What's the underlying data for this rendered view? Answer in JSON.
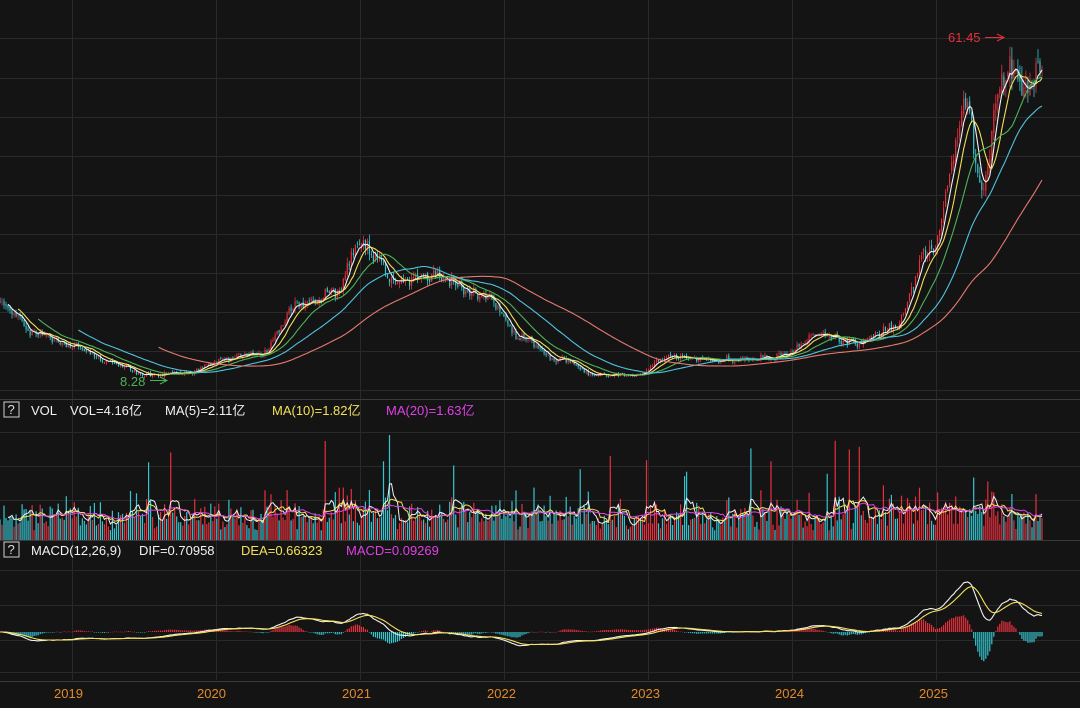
{
  "colors": {
    "background": "#141414",
    "grid": "#2a2a2a",
    "up": "#e5303d",
    "down": "#35c5cf",
    "ma_white": "#f2f2f2",
    "ma_yellow": "#f3e15a",
    "ma_green": "#4db35a",
    "ma_cyan": "#4fc3df",
    "ma_salmon": "#e8796f",
    "magenta": "#e040e8",
    "year_axis": "#e08a2a",
    "price_high_label": "#e5303d",
    "price_low_label": "#4db35a"
  },
  "price_panel": {
    "high_label": "61.45",
    "low_label": "8.28"
  },
  "vol_panel": {
    "help_icon": "?",
    "name": "VOL",
    "vol": "VOL=4.16亿",
    "ma5": "MA(5)=2.11亿",
    "ma10": "MA(10)=1.82亿",
    "ma20": "MA(20)=1.63亿"
  },
  "macd_panel": {
    "help_icon": "?",
    "name": "MACD(12,26,9)",
    "dif": "DIF=0.70958",
    "dea": "DEA=0.66323",
    "macd": "MACD=0.09269"
  },
  "x_axis": {
    "years": [
      "2019",
      "2020",
      "2021",
      "2022",
      "2023",
      "2024",
      "2025"
    ]
  },
  "chart_data": [
    {
      "type": "line",
      "name": "price",
      "x": [
        "2018-10",
        "2019-01",
        "2019-04",
        "2019-07",
        "2019-10",
        "2020-01",
        "2020-04",
        "2020-07",
        "2020-10",
        "2021-01",
        "2021-03",
        "2021-06",
        "2021-09",
        "2022-01",
        "2022-04",
        "2022-07",
        "2022-10",
        "2023-01",
        "2023-04",
        "2023-07",
        "2023-10",
        "2024-01",
        "2024-04",
        "2024-07",
        "2024-10",
        "2025-01",
        "2025-04",
        "2025-05",
        "2025-07",
        "2025-09",
        "2025-10"
      ],
      "series": [
        {
          "values": [
            20.5,
            15.5,
            13.5,
            11,
            9,
            9.5,
            11.5,
            12.5,
            20,
            22,
            29.5,
            24,
            24.5,
            21.5,
            15,
            11.5,
            9.3,
            9,
            12,
            11.5,
            11.5,
            12,
            15.5,
            14,
            16.5,
            28.5,
            51,
            38,
            57,
            54,
            58
          ]
        }
      ],
      "annotations": [
        "61.45",
        "8.28"
      ]
    },
    {
      "type": "bar",
      "name": "volume",
      "legend": [
        "VOL=4.16亿",
        "MA(5)=2.11亿",
        "MA(10)=1.82亿",
        "MA(20)=1.63亿"
      ]
    },
    {
      "type": "line",
      "name": "macd",
      "legend": [
        "MACD(12,26,9)",
        "DIF=0.70958",
        "DEA=0.66323",
        "MACD=0.09269"
      ]
    }
  ]
}
